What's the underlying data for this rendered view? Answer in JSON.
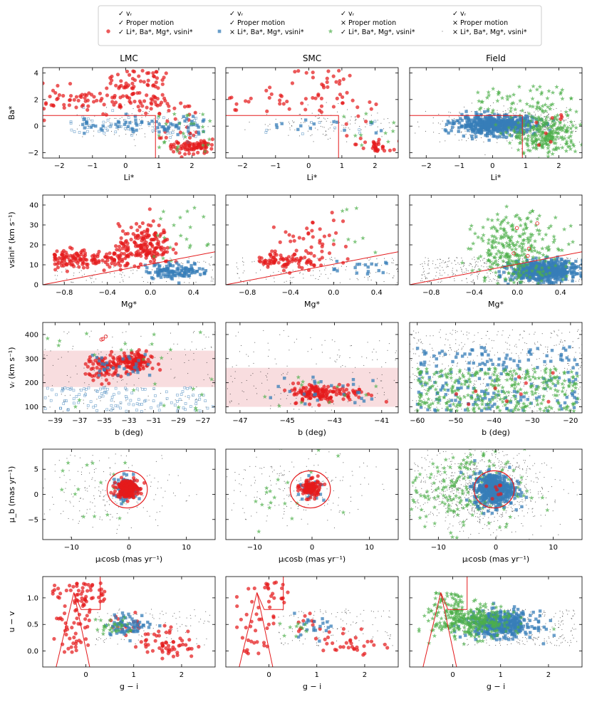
{
  "legend": {
    "entries": [
      {
        "name": "rv_pm_abund",
        "lines": [
          "✓ vᵣ",
          "✓ Proper motion",
          "✓ Li*, Ba*, Mg*, vsini*"
        ],
        "marker": "circle",
        "color": "#e41a1c"
      },
      {
        "name": "rv_pm_noabund",
        "lines": [
          "✓ vᵣ",
          "✓ Proper motion",
          "× Li*, Ba*, Mg*, vsini*"
        ],
        "marker": "square",
        "color": "#377eb8"
      },
      {
        "name": "rv_nopm_abund",
        "lines": [
          "✓ vᵣ",
          "× Proper motion",
          "✓ Li*, Ba*, Mg*, vsini*"
        ],
        "marker": "star",
        "color": "#4daf4a"
      },
      {
        "name": "rv_nopm_noabund",
        "lines": [
          "✓ vᵣ",
          "× Proper motion",
          "× Li*, Ba*, Mg*, vsini*"
        ],
        "marker": "dot",
        "color": "#000000"
      }
    ]
  },
  "columns": [
    "LMC",
    "SMC",
    "Field"
  ],
  "colors": {
    "red": "#e41a1c",
    "blue": "#377eb8",
    "green": "#4daf4a",
    "black": "#000000",
    "band": "#f4c7c9"
  },
  "chart_data": [
    {
      "row": 0,
      "type": "scatter",
      "xlabel": "Li*",
      "ylabel": "Ba*",
      "xlim": [
        -2.5,
        2.7
      ],
      "ylim": [
        -2.4,
        4.4
      ],
      "xticks": [
        -2,
        -1,
        0,
        1,
        2
      ],
      "yticks": [
        -2,
        0,
        2,
        4
      ],
      "selection_box": {
        "li_max": 0.9,
        "ba_min": 0.8
      }
    },
    {
      "row": 1,
      "type": "scatter",
      "xlabel": "Mg*",
      "ylabel": "vsini* (km s⁻¹)",
      "xlim": [
        -1.0,
        0.6
      ],
      "ylim": [
        0,
        45
      ],
      "xticks": [
        -0.8,
        -0.4,
        0.0,
        0.4
      ],
      "yticks": [
        0,
        10,
        20,
        30,
        40
      ],
      "cut_line": {
        "x": [
          -1.0,
          0.6
        ],
        "y": [
          0,
          16.5
        ]
      }
    },
    {
      "row": 2,
      "type": "scatter",
      "xlabel": "b (deg)",
      "ylabel": "vᵣ (km s⁻¹)",
      "panels": [
        {
          "xlim": [
            -40,
            -26
          ],
          "xticks": [
            -39,
            -37,
            -35,
            -33,
            -31,
            -29,
            -27
          ],
          "band": [
            182,
            333
          ]
        },
        {
          "xlim": [
            -47.6,
            -40.3
          ],
          "xticks": [
            -47,
            -45,
            -43,
            -41
          ],
          "band": [
            100,
            262
          ]
        },
        {
          "xlim": [
            -62,
            -17
          ],
          "xticks": [
            -60,
            -50,
            -40,
            -30,
            -20
          ],
          "band": null
        }
      ],
      "ylim": [
        75,
        450
      ],
      "yticks": [
        100,
        200,
        300,
        400
      ]
    },
    {
      "row": 3,
      "type": "scatter",
      "xlabel": "μₗcosb (mas yr⁻¹)",
      "ylabel": "μ_b (mas yr⁻¹)",
      "xlim": [
        -15,
        15
      ],
      "ylim": [
        -9,
        9
      ],
      "xticks": [
        -10,
        0,
        10
      ],
      "yticks": [
        -5,
        0,
        5
      ],
      "ellipse": {
        "cx": -0.3,
        "cy": 1.0,
        "rx": 3.5,
        "ry": 3.7
      }
    },
    {
      "row": 4,
      "type": "scatter",
      "xlabel": "g − i",
      "ylabel": "u − v",
      "xlim": [
        -0.9,
        2.7
      ],
      "ylim": [
        -0.3,
        1.4
      ],
      "xticks": [
        0,
        1,
        2
      ],
      "yticks": [
        0.0,
        0.5,
        1.0
      ],
      "cut_poly": {
        "x": [
          0.08,
          -0.25,
          -0.1,
          0.3,
          0.3
        ],
        "y": [
          -0.3,
          1.1,
          0.78,
          0.78,
          1.4
        ]
      }
    }
  ],
  "tick_labels": {
    "row0_x": [
      "−2",
      "−1",
      "0",
      "1",
      "2"
    ],
    "row0_y": [
      "−2",
      "0",
      "2",
      "4"
    ],
    "row1_x": [
      "−0.8",
      "−0.4",
      "0.0",
      "0.4"
    ],
    "row1_y": [
      "0",
      "10",
      "20",
      "30",
      "40"
    ],
    "row2_x0": [
      "−39",
      "−37",
      "−35",
      "−33",
      "−31",
      "−29",
      "−27"
    ],
    "row2_x1": [
      "−47",
      "−45",
      "−43",
      "−41"
    ],
    "row2_x2": [
      "−60",
      "−50",
      "−40",
      "−30",
      "−20"
    ],
    "row2_y": [
      "100",
      "200",
      "300",
      "400"
    ],
    "row3_x": [
      "−10",
      "0",
      "10"
    ],
    "row3_y": [
      "−5",
      "0",
      "5"
    ],
    "row4_x": [
      "0",
      "1",
      "2"
    ],
    "row4_y": [
      "0.0",
      "0.5",
      "1.0"
    ]
  }
}
